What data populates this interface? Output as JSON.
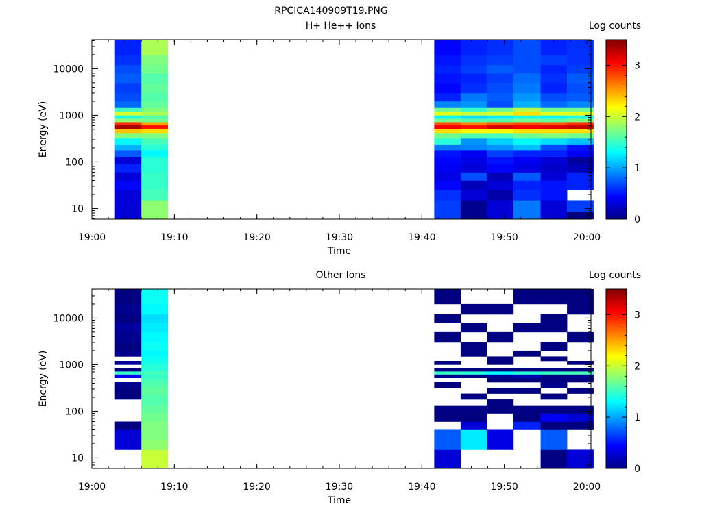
{
  "window": {
    "title": "RPCICA140909T19.PNG"
  },
  "colorbar": {
    "label": "Log counts",
    "ticks": [
      "0",
      "1",
      "2",
      "3"
    ],
    "range": [
      0,
      3.5
    ],
    "colormap": "jet"
  },
  "x_axis": {
    "label": "Time",
    "ticks": [
      "19:00",
      "19:10",
      "19:20",
      "19:30",
      "19:40",
      "19:50",
      "20:00"
    ],
    "range_minutes": [
      0,
      60.5
    ]
  },
  "y_axis": {
    "label": "Energy (eV)",
    "ticks": [
      "10",
      "100",
      "1000",
      "10000"
    ],
    "scale": "log",
    "range": [
      5.9,
      42000
    ]
  },
  "chart_data": [
    {
      "type": "heatmap",
      "title": "H+ He++ Ions",
      "xlabel": "Time",
      "ylabel": "Energy (eV)",
      "colorbar_label": "Log counts",
      "y_scale": "log",
      "ylim": [
        5.9,
        42000
      ],
      "clim": [
        0,
        3.5
      ],
      "time_bins": [
        {
          "start": "19:02.8",
          "end": "19:06.0"
        },
        {
          "start": "19:06.0",
          "end": "19:09.2"
        },
        {
          "start": "19:41.5",
          "end": "19:44.7"
        },
        {
          "start": "19:44.7",
          "end": "19:47.9"
        },
        {
          "start": "19:47.9",
          "end": "19:51.1"
        },
        {
          "start": "19:51.1",
          "end": "19:54.4"
        },
        {
          "start": "19:54.4",
          "end": "19:57.6"
        },
        {
          "start": "19:57.6",
          "end": "20:00.8"
        }
      ],
      "energy_band_edges": [
        5.9,
        8.5,
        15,
        25,
        40,
        60,
        90,
        130,
        180,
        240,
        320,
        420,
        520,
        620,
        720,
        850,
        1000,
        1200,
        1500,
        2000,
        3000,
        5000,
        8000,
        12000,
        20000,
        42000
      ],
      "values": [
        [
          0.3,
          1.8,
          0.65,
          0.05,
          0.3,
          0.85,
          0.3,
          0.0
        ],
        [
          0.3,
          1.8,
          0.65,
          0.05,
          0.3,
          0.85,
          0.3,
          0.65
        ],
        [
          0.3,
          1.55,
          0.6,
          0.3,
          0.15,
          0.6,
          0.5,
          null
        ],
        [
          0.45,
          1.5,
          0.45,
          0.2,
          0.3,
          0.55,
          0.5,
          0.55
        ],
        [
          0.3,
          1.5,
          0.35,
          0.7,
          0.2,
          0.75,
          0.3,
          0.55
        ],
        [
          0.55,
          1.45,
          0.4,
          0.3,
          0.45,
          0.35,
          0.25,
          0.2
        ],
        [
          0.3,
          1.45,
          0.45,
          0.35,
          0.5,
          0.4,
          0.3,
          0.1
        ],
        [
          0.75,
          1.3,
          0.5,
          0.4,
          0.65,
          0.55,
          0.55,
          0.4
        ],
        [
          1.05,
          1.45,
          0.85,
          0.9,
          0.95,
          1.1,
          0.7,
          0.5
        ],
        [
          1.3,
          1.55,
          1.45,
          0.95,
          1.15,
          1.3,
          1.2,
          1.1
        ],
        [
          1.75,
          1.75,
          1.7,
          1.6,
          1.55,
          1.7,
          1.75,
          1.7
        ],
        [
          2.4,
          2.3,
          2.3,
          2.2,
          2.2,
          2.3,
          2.3,
          2.3
        ],
        [
          3.35,
          3.0,
          3.1,
          3.0,
          3.2,
          3.1,
          3.15,
          3.25
        ],
        [
          2.9,
          2.5,
          2.8,
          2.6,
          2.75,
          2.8,
          2.75,
          2.9
        ],
        [
          1.8,
          1.7,
          1.7,
          1.6,
          1.6,
          1.7,
          1.65,
          1.75
        ],
        [
          1.4,
          1.6,
          1.3,
          1.2,
          1.25,
          1.4,
          1.3,
          1.4
        ],
        [
          2.05,
          1.9,
          2.1,
          2.0,
          2.05,
          2.3,
          2.1,
          2.1
        ],
        [
          1.55,
          1.75,
          1.7,
          1.5,
          1.7,
          1.95,
          1.7,
          1.7
        ],
        [
          0.8,
          1.65,
          0.9,
          0.95,
          0.7,
          1.05,
          0.8,
          0.9
        ],
        [
          0.7,
          1.6,
          0.55,
          0.85,
          0.75,
          0.95,
          0.7,
          0.75
        ],
        [
          0.65,
          1.65,
          0.45,
          0.6,
          0.7,
          0.85,
          0.55,
          0.7
        ],
        [
          0.75,
          1.6,
          0.5,
          0.55,
          0.65,
          0.8,
          0.6,
          0.75
        ],
        [
          0.7,
          1.7,
          0.55,
          0.65,
          0.75,
          0.7,
          0.55,
          0.65
        ],
        [
          0.6,
          1.75,
          0.5,
          0.6,
          0.65,
          0.7,
          0.65,
          0.6
        ],
        [
          0.55,
          1.9,
          0.45,
          0.55,
          0.6,
          0.7,
          0.55,
          0.6
        ]
      ]
    },
    {
      "type": "heatmap",
      "title": "Other Ions",
      "xlabel": "Time",
      "ylabel": "Energy (eV)",
      "colorbar_label": "Log counts",
      "y_scale": "log",
      "ylim": [
        5.9,
        42000
      ],
      "clim": [
        0,
        3.5
      ],
      "time_bins": [
        {
          "start": "19:02.8",
          "end": "19:06.0"
        },
        {
          "start": "19:06.0",
          "end": "19:09.2"
        },
        {
          "start": "19:41.5",
          "end": "19:44.7"
        },
        {
          "start": "19:44.7",
          "end": "19:47.9"
        },
        {
          "start": "19:47.9",
          "end": "19:51.1"
        },
        {
          "start": "19:51.1",
          "end": "19:54.4"
        },
        {
          "start": "19:54.4",
          "end": "19:57.6"
        },
        {
          "start": "19:57.6",
          "end": "20:00.8"
        }
      ],
      "energy_band_edges": [
        5.9,
        8.5,
        15,
        25,
        40,
        60,
        90,
        130,
        180,
        240,
        320,
        420,
        520,
        620,
        720,
        850,
        1000,
        1200,
        1500,
        2000,
        3000,
        5000,
        8000,
        12000,
        20000,
        42000
      ],
      "values": [
        [
          null,
          2.0,
          0.3,
          null,
          null,
          null,
          0.0,
          0.3
        ],
        [
          null,
          2.0,
          0.3,
          null,
          null,
          null,
          0.0,
          0.3
        ],
        [
          0.3,
          1.8,
          0.75,
          1.25,
          0.35,
          null,
          0.75,
          null
        ],
        [
          0.3,
          1.75,
          0.75,
          1.25,
          0.35,
          null,
          0.75,
          null
        ],
        [
          0.0,
          1.75,
          null,
          0.3,
          null,
          0.55,
          0.0,
          0.0
        ],
        [
          null,
          1.7,
          0.0,
          0.0,
          null,
          0.0,
          0.4,
          0.3
        ],
        [
          null,
          1.65,
          0.0,
          0.0,
          0.0,
          0.0,
          0.0,
          0.0
        ],
        [
          null,
          1.6,
          null,
          null,
          0.0,
          null,
          null,
          null
        ],
        [
          0.0,
          1.6,
          null,
          0.0,
          null,
          null,
          0.0,
          null
        ],
        [
          0.0,
          1.65,
          null,
          null,
          0.0,
          0.0,
          null,
          0.0
        ],
        [
          0.05,
          1.6,
          0.0,
          null,
          null,
          null,
          0.05,
          null
        ],
        [
          null,
          1.55,
          null,
          null,
          0.0,
          0.0,
          0.0,
          0.0
        ],
        [
          0.4,
          1.5,
          0.05,
          0.0,
          0.05,
          0.2,
          0.0,
          0.05
        ],
        [
          1.5,
          1.55,
          1.5,
          1.45,
          1.3,
          1.45,
          1.5,
          1.55
        ],
        [
          0.0,
          1.45,
          0.0,
          0.0,
          0.0,
          0.0,
          0.0,
          0.0
        ],
        [
          null,
          1.45,
          null,
          null,
          null,
          null,
          null,
          null
        ],
        [
          0.1,
          1.4,
          0.0,
          null,
          0.0,
          null,
          null,
          0.0
        ],
        [
          null,
          1.35,
          null,
          null,
          0.0,
          null,
          0.0,
          null
        ],
        [
          0.05,
          1.3,
          null,
          0.0,
          null,
          0.0,
          null,
          null
        ],
        [
          0.0,
          1.35,
          null,
          0.0,
          null,
          null,
          0.0,
          null
        ],
        [
          0.05,
          1.3,
          0.0,
          null,
          0.0,
          null,
          null,
          0.0
        ],
        [
          0.1,
          1.25,
          null,
          0.0,
          null,
          0.0,
          0.0,
          null
        ],
        [
          0.0,
          1.2,
          0.0,
          null,
          null,
          null,
          0.0,
          null
        ],
        [
          0.05,
          1.3,
          null,
          0.0,
          0.0,
          null,
          null,
          0.0
        ],
        [
          0.0,
          1.35,
          0.0,
          null,
          null,
          0.0,
          0.0,
          0.0
        ]
      ]
    }
  ]
}
